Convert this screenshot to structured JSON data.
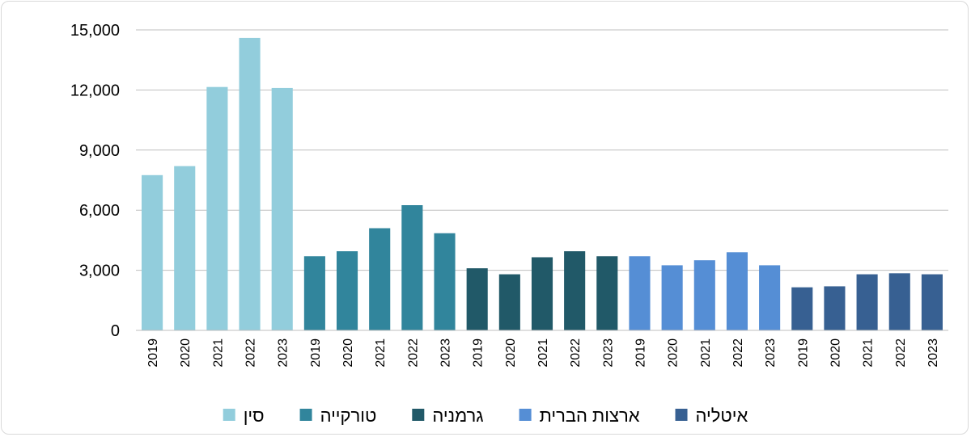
{
  "chart_data": {
    "type": "bar",
    "groups": [
      {
        "name": "סין",
        "color": "#92cddc",
        "x": [
          "2019",
          "2020",
          "2021",
          "2022",
          "2023"
        ],
        "values": [
          7750,
          8200,
          12150,
          14600,
          12100
        ]
      },
      {
        "name": "טורקייה",
        "color": "#31859c",
        "x": [
          "2019",
          "2020",
          "2021",
          "2022",
          "2023"
        ],
        "values": [
          3700,
          3950,
          5100,
          6250,
          4850
        ]
      },
      {
        "name": "גרמניה",
        "color": "#215968",
        "x": [
          "2019",
          "2020",
          "2021",
          "2022",
          "2023"
        ],
        "values": [
          3100,
          2800,
          3650,
          3950,
          3700
        ]
      },
      {
        "name": "ארצות הברית",
        "color": "#558ed5",
        "x": [
          "2019",
          "2020",
          "2021",
          "2022",
          "2023"
        ],
        "values": [
          3700,
          3250,
          3500,
          3900,
          3250
        ]
      },
      {
        "name": "איטליה",
        "color": "#376092",
        "x": [
          "2019",
          "2020",
          "2021",
          "2022",
          "2023"
        ],
        "values": [
          2150,
          2200,
          2800,
          2850,
          2800
        ]
      }
    ],
    "y_ticks": [
      "0",
      "3,000",
      "6,000",
      "9,000",
      "12,000",
      "15,000"
    ],
    "ylim": [
      0,
      15000
    ],
    "grid": true,
    "legend_position": "bottom"
  }
}
